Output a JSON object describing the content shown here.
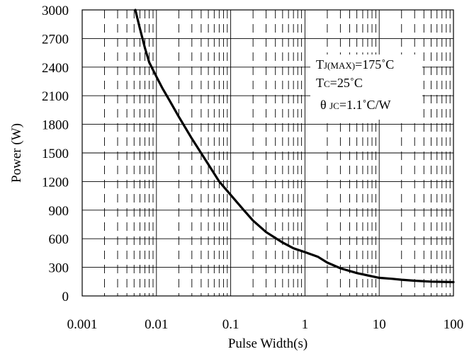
{
  "chart_data": {
    "type": "line",
    "title": "",
    "xlabel": "Pulse Width(s)",
    "ylabel": "Power (W)",
    "x_scale": "log",
    "xlim": [
      0.001,
      100
    ],
    "ylim": [
      0,
      3000
    ],
    "x_ticks": [
      "0.001",
      "0.01",
      "0.1",
      "1",
      "10",
      "100"
    ],
    "y_ticks": [
      "0",
      "300",
      "600",
      "900",
      "1200",
      "1500",
      "1800",
      "2100",
      "2400",
      "2700",
      "3000"
    ],
    "grid": true,
    "series": [
      {
        "color": "#000000",
        "x": [
          0.0052,
          0.006,
          0.007,
          0.008,
          0.01,
          0.012,
          0.015,
          0.02,
          0.03,
          0.05,
          0.07,
          0.1,
          0.15,
          0.2,
          0.3,
          0.5,
          0.7,
          1,
          1.5,
          2,
          3,
          5,
          7,
          10,
          15,
          20,
          30,
          50,
          100
        ],
        "y": [
          3000,
          2800,
          2600,
          2450,
          2300,
          2180,
          2050,
          1880,
          1650,
          1380,
          1200,
          1060,
          900,
          790,
          670,
          560,
          500,
          460,
          410,
          350,
          290,
          240,
          215,
          190,
          180,
          170,
          160,
          150,
          145
        ]
      }
    ],
    "annotations": [
      {
        "main": "T",
        "sub": "J(MAX)",
        "rest": "=175˚C"
      },
      {
        "main": "T",
        "sub": "C",
        "rest": "=25˚C"
      },
      {
        "main": "θ ",
        "sub": "JC",
        "rest": "=1.1˚C/W"
      }
    ]
  }
}
